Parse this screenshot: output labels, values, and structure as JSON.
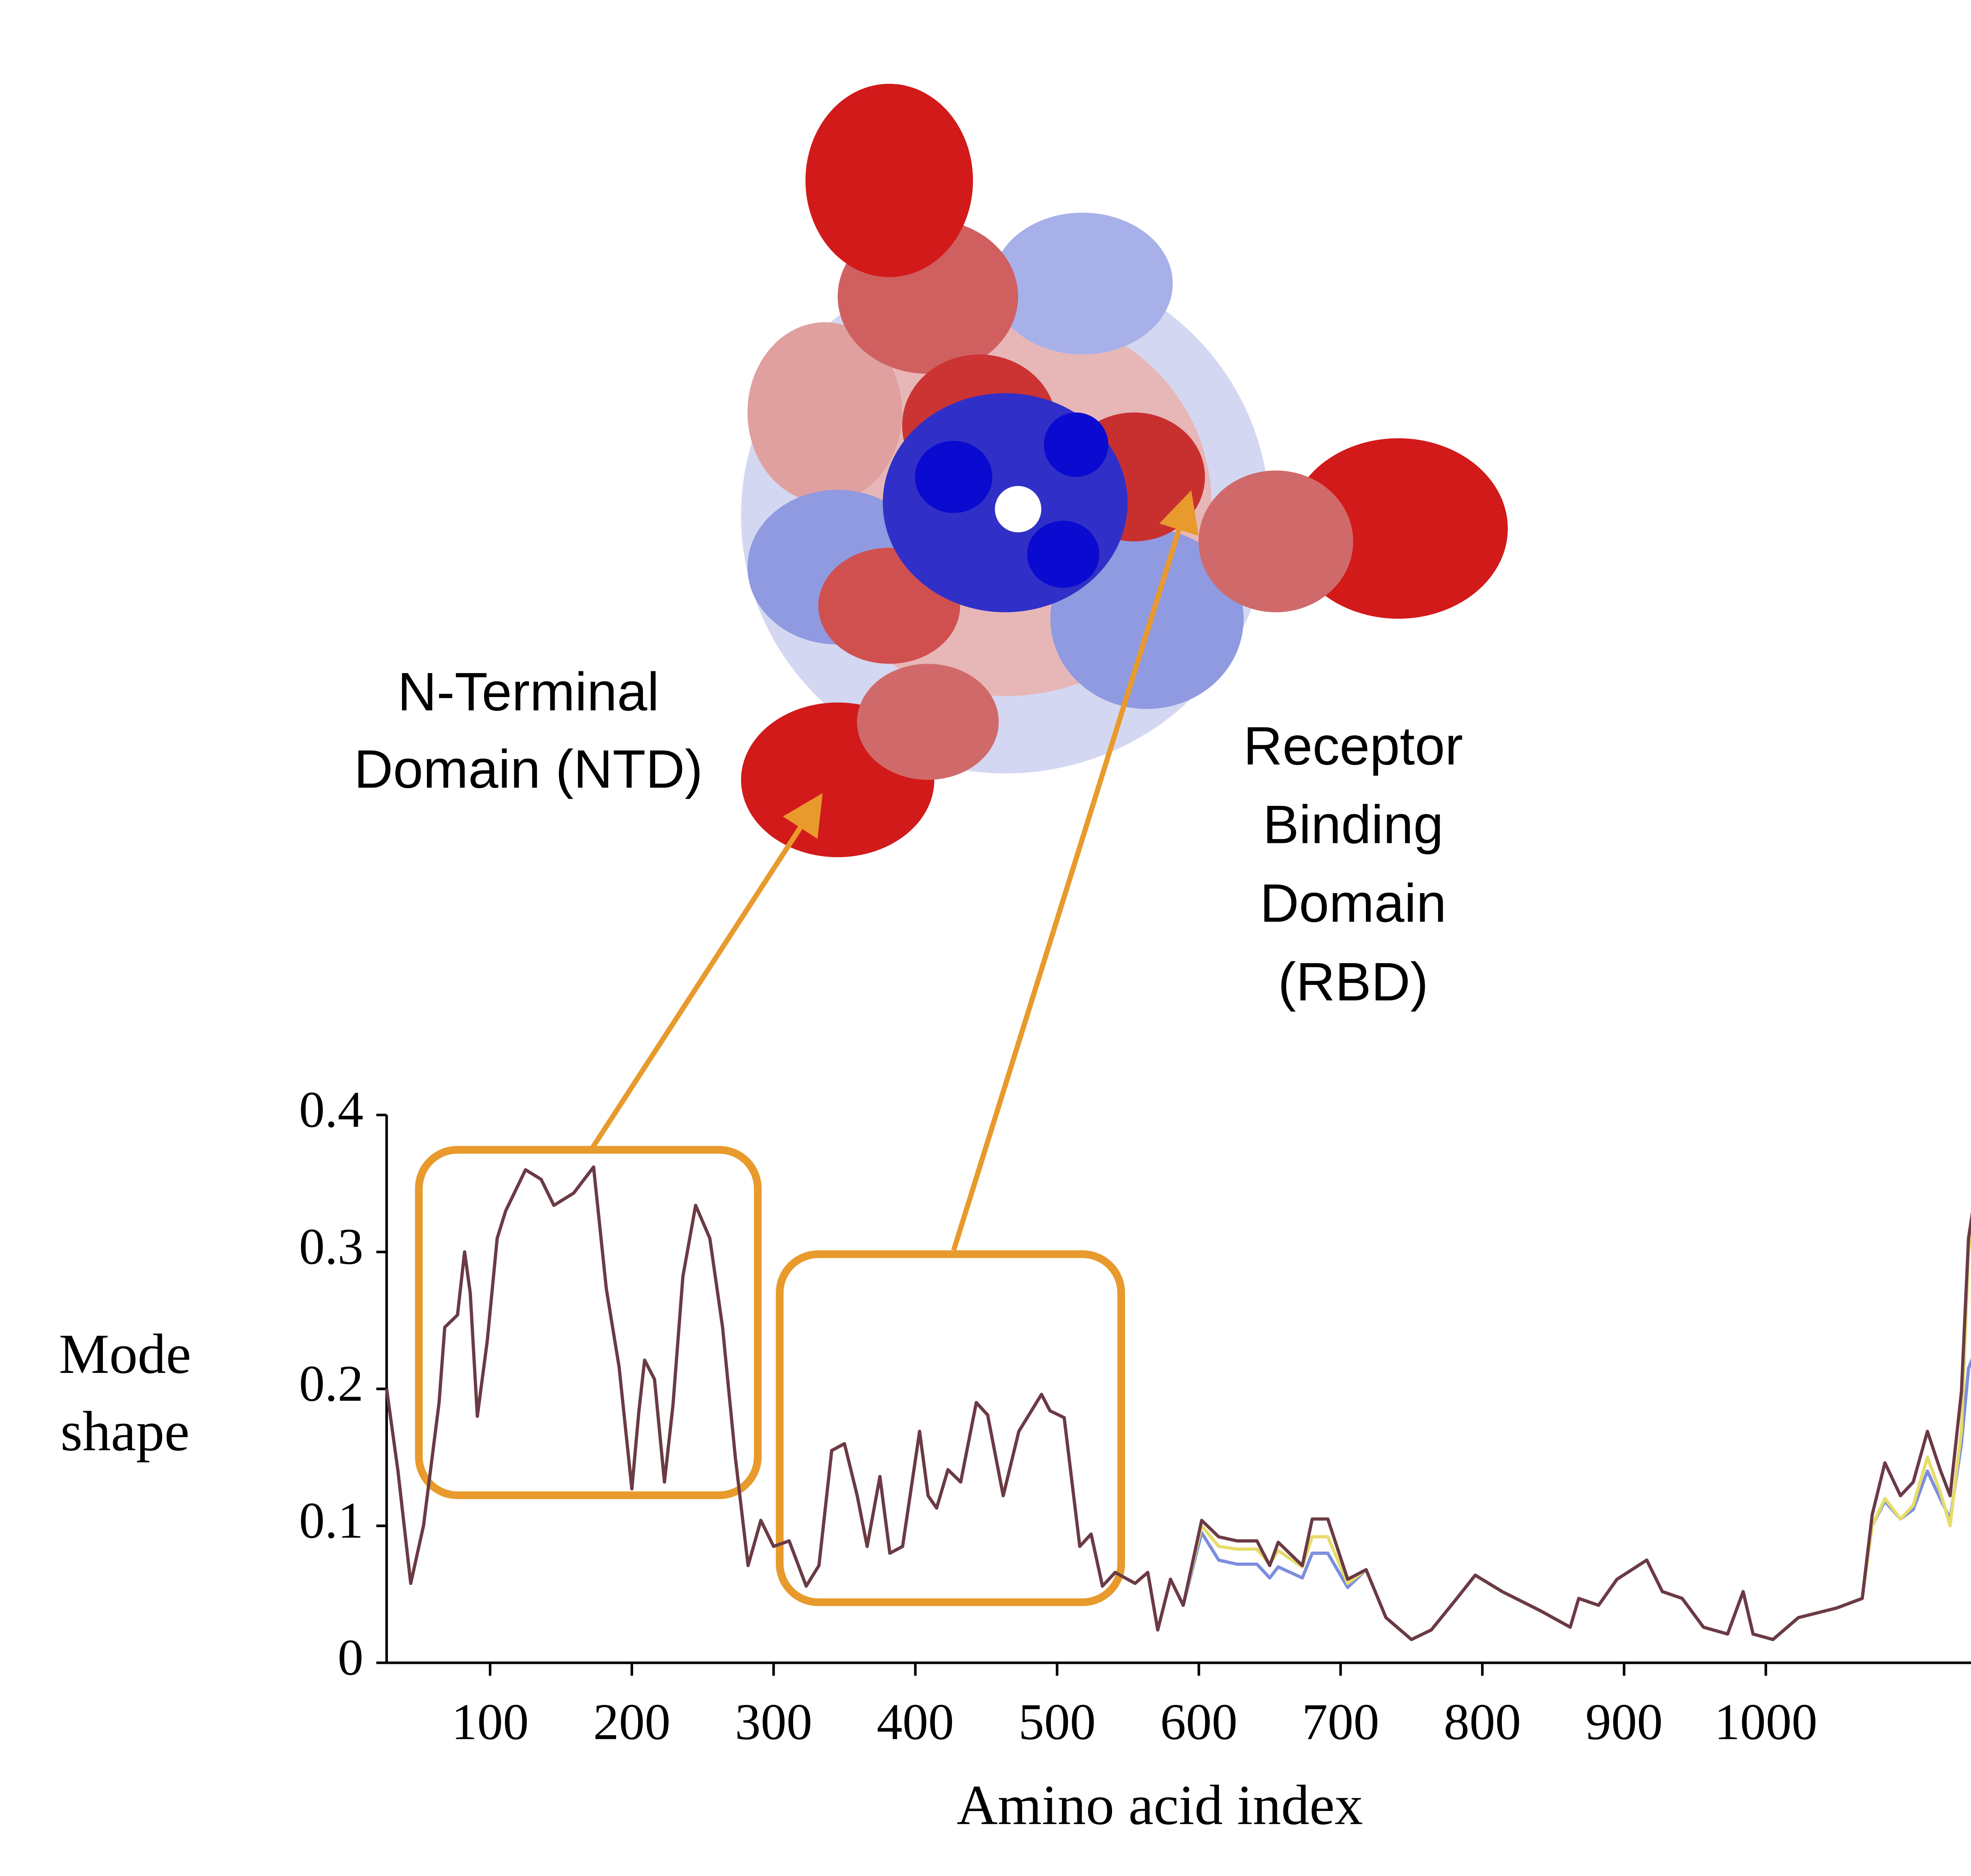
{
  "chart_data": {
    "type": "line",
    "xlabel": "Amino acid index",
    "ylabel": [
      "Mode",
      "shape"
    ],
    "annotations": [
      {
        "lines": [
          "N-Terminal",
          "Domain (NTD)"
        ]
      },
      {
        "lines": [
          "Receptor",
          "Binding",
          "Domain",
          "(RBD)"
        ]
      }
    ],
    "x": [
      27,
      35,
      44,
      53,
      64,
      68,
      77,
      82,
      86,
      91,
      98,
      105,
      111,
      118,
      125,
      136,
      145,
      159,
      173,
      182,
      191,
      200,
      205,
      209,
      216,
      223,
      229,
      236,
      245,
      255,
      264,
      273,
      282,
      291,
      300,
      311,
      323,
      332,
      341,
      350,
      359,
      366,
      375,
      382,
      391,
      403,
      409,
      415,
      423,
      432,
      443,
      451,
      462,
      473,
      489,
      495,
      505,
      516,
      524,
      532,
      541,
      555,
      564,
      571,
      580,
      589,
      602,
      614,
      627,
      641,
      650,
      656,
      673,
      680,
      691,
      705,
      718,
      732,
      750,
      764,
      782,
      795,
      814,
      841,
      862,
      868,
      882,
      895,
      916,
      927,
      941,
      956,
      973,
      984,
      991,
      1005,
      1023,
      1050,
      1068,
      1075,
      1084,
      1095,
      1104,
      1114,
      1123,
      1130,
      1138,
      1143,
      1148
    ],
    "series": [
      {
        "color": "#7b8ee0",
        "values": [
          0.2,
          0.14,
          0.058,
          0.1,
          0.19,
          0.245,
          0.254,
          0.3,
          0.27,
          0.18,
          0.235,
          0.31,
          0.33,
          0.345,
          0.36,
          0.353,
          0.334,
          0.343,
          0.362,
          0.273,
          0.216,
          0.127,
          0.184,
          0.221,
          0.207,
          0.132,
          0.188,
          0.282,
          0.334,
          0.31,
          0.245,
          0.15,
          0.071,
          0.104,
          0.085,
          0.089,
          0.056,
          0.071,
          0.155,
          0.16,
          0.122,
          0.085,
          0.136,
          0.08,
          0.085,
          0.169,
          0.122,
          0.113,
          0.141,
          0.132,
          0.19,
          0.181,
          0.122,
          0.169,
          0.196,
          0.184,
          0.179,
          0.085,
          0.094,
          0.056,
          0.066,
          0.058,
          0.066,
          0.024,
          0.061,
          0.042,
          0.095,
          0.075,
          0.072,
          0.072,
          0.062,
          0.07,
          0.062,
          0.08,
          0.08,
          0.055,
          0.068,
          0.033,
          0.017,
          0.024,
          0.047,
          0.064,
          0.052,
          0.038,
          0.026,
          0.047,
          0.042,
          0.061,
          0.075,
          0.052,
          0.047,
          0.026,
          0.021,
          0.052,
          0.021,
          0.017,
          0.033,
          0.04,
          0.047,
          0.1,
          0.118,
          0.105,
          0.112,
          0.14,
          0.12,
          0.105,
          0.16,
          0.215,
          0.228
        ]
      },
      {
        "color": "#e6dc6a",
        "values": [
          0.2,
          0.14,
          0.058,
          0.1,
          0.19,
          0.245,
          0.254,
          0.3,
          0.27,
          0.18,
          0.235,
          0.31,
          0.33,
          0.345,
          0.36,
          0.353,
          0.334,
          0.343,
          0.362,
          0.273,
          0.216,
          0.127,
          0.184,
          0.221,
          0.207,
          0.132,
          0.188,
          0.282,
          0.334,
          0.31,
          0.245,
          0.15,
          0.071,
          0.104,
          0.085,
          0.089,
          0.056,
          0.071,
          0.155,
          0.16,
          0.122,
          0.085,
          0.136,
          0.08,
          0.085,
          0.169,
          0.122,
          0.113,
          0.141,
          0.132,
          0.19,
          0.181,
          0.122,
          0.169,
          0.196,
          0.184,
          0.179,
          0.085,
          0.094,
          0.056,
          0.066,
          0.058,
          0.066,
          0.024,
          0.061,
          0.042,
          0.1,
          0.085,
          0.083,
          0.083,
          0.072,
          0.082,
          0.07,
          0.092,
          0.092,
          0.058,
          0.068,
          0.033,
          0.017,
          0.024,
          0.047,
          0.064,
          0.052,
          0.038,
          0.026,
          0.047,
          0.042,
          0.061,
          0.075,
          0.052,
          0.047,
          0.026,
          0.021,
          0.052,
          0.021,
          0.017,
          0.033,
          0.04,
          0.047,
          0.1,
          0.12,
          0.105,
          0.115,
          0.15,
          0.125,
          0.1,
          0.17,
          0.3,
          0.34
        ]
      },
      {
        "color": "#6b3a45",
        "values": [
          0.2,
          0.14,
          0.058,
          0.1,
          0.19,
          0.245,
          0.254,
          0.3,
          0.27,
          0.18,
          0.235,
          0.31,
          0.33,
          0.345,
          0.36,
          0.353,
          0.334,
          0.343,
          0.362,
          0.273,
          0.216,
          0.127,
          0.184,
          0.221,
          0.207,
          0.132,
          0.188,
          0.282,
          0.334,
          0.31,
          0.245,
          0.15,
          0.071,
          0.104,
          0.085,
          0.089,
          0.056,
          0.071,
          0.155,
          0.16,
          0.122,
          0.085,
          0.136,
          0.08,
          0.085,
          0.169,
          0.122,
          0.113,
          0.141,
          0.132,
          0.19,
          0.181,
          0.122,
          0.169,
          0.196,
          0.184,
          0.179,
          0.085,
          0.094,
          0.056,
          0.066,
          0.058,
          0.066,
          0.024,
          0.061,
          0.042,
          0.104,
          0.092,
          0.089,
          0.089,
          0.071,
          0.088,
          0.071,
          0.105,
          0.105,
          0.061,
          0.068,
          0.033,
          0.017,
          0.024,
          0.047,
          0.064,
          0.052,
          0.038,
          0.026,
          0.047,
          0.042,
          0.061,
          0.075,
          0.052,
          0.047,
          0.026,
          0.021,
          0.052,
          0.021,
          0.017,
          0.033,
          0.04,
          0.047,
          0.108,
          0.146,
          0.122,
          0.132,
          0.169,
          0.141,
          0.122,
          0.198,
          0.31,
          0.344
        ]
      }
    ],
    "xlim": [
      27,
      1148
    ],
    "xticks": [
      100,
      200,
      300,
      400,
      500,
      600,
      700,
      800,
      900,
      1000
    ],
    "ylim": [
      0,
      0.4
    ],
    "yticks": [
      0,
      0.1,
      0.2,
      0.3,
      0.4
    ],
    "grid": false
  }
}
